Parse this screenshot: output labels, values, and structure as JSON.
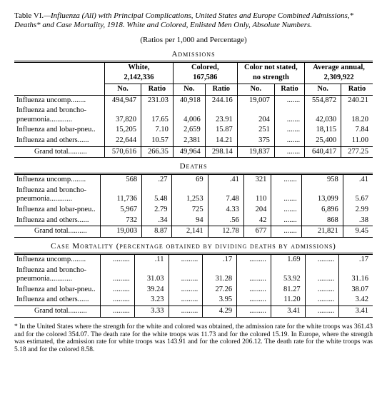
{
  "title": {
    "table_no": "Table VI.",
    "main": "—Influenza (All) with Principal Complications, United States and Europe Combined Admissions,* Deaths* and Case Mortality, 1918.   White and Colored, Enlisted Men Only, Absolute Numbers.",
    "ratios": "(Ratios per 1,000 and Percentage)"
  },
  "sections": {
    "admissions": "Admissions",
    "deaths": "Deaths",
    "case_mortality": "Case Mortality (percentage obtained by dividing deaths by admissions)"
  },
  "column_groups": [
    {
      "label_top": "White,",
      "label_bot": "2,142,336"
    },
    {
      "label_top": "Colored,",
      "label_bot": "167,586"
    },
    {
      "label_top": "Color not stated,",
      "label_bot": "no strength"
    },
    {
      "label_top": "Average annual,",
      "label_bot": "2,309,922"
    }
  ],
  "sub_cols": [
    "No.",
    "Ratio",
    "No.",
    "Ratio",
    "No.",
    "Ratio",
    "No.",
    "Ratio"
  ],
  "row_labels": [
    "Influenza uncomp........",
    "Influenza and broncho-pneumonia............",
    "Influenza and lobar-pneu..",
    "Influenza and others......",
    "Grand total.........."
  ],
  "admissions": {
    "rows": [
      [
        "494,947",
        "231.03",
        "40,918",
        "244.16",
        "19,007",
        ".......",
        "554,872",
        "240.21"
      ],
      [
        "37,820",
        "17.65",
        "4,006",
        "23.91",
        "204",
        ".......",
        "42,030",
        "18.20"
      ],
      [
        "15,205",
        "7.10",
        "2,659",
        "15.87",
        "251",
        ".......",
        "18,115",
        "7.84"
      ],
      [
        "22,644",
        "10.57",
        "2,381",
        "14.21",
        "375",
        ".......",
        "25,400",
        "11.00"
      ],
      [
        "570,616",
        "266.35",
        "49,964",
        "298.14",
        "19,837",
        ".......",
        "640,417",
        "277.25"
      ]
    ]
  },
  "deaths": {
    "rows": [
      [
        "568",
        ".27",
        "69",
        ".41",
        "321",
        ".......",
        "958",
        ".41"
      ],
      [
        "11,736",
        "5.48",
        "1,253",
        "7.48",
        "110",
        ".......",
        "13,099",
        "5.67"
      ],
      [
        "5,967",
        "2.79",
        "725",
        "4.33",
        "204",
        ".......",
        "6,896",
        "2.99"
      ],
      [
        "732",
        ".34",
        "94",
        ".56",
        "42",
        ".......",
        "868",
        ".38"
      ],
      [
        "19,003",
        "8.87",
        "2,141",
        "12.78",
        "677",
        ".......",
        "21,821",
        "9.45"
      ]
    ]
  },
  "case_mortality": {
    "rows": [
      [
        ".........",
        ".11",
        ".........",
        ".17",
        ".........",
        "1.69",
        ".........",
        ".17"
      ],
      [
        ".........",
        "31.03",
        ".........",
        "31.28",
        ".........",
        "53.92",
        ".........",
        "31.16"
      ],
      [
        ".........",
        "39.24",
        ".........",
        "27.26",
        ".........",
        "81.27",
        ".........",
        "38.07"
      ],
      [
        ".........",
        "3.23",
        ".........",
        "3.95",
        ".........",
        "11.20",
        ".........",
        "3.42"
      ],
      [
        ".........",
        "3.33",
        ".........",
        "4.29",
        ".........",
        "3.41",
        ".........",
        "3.41"
      ]
    ]
  },
  "footnote": "* In the United States where the strength for the white and colored was obtained, the admission rate for the white troops was 361.43 and for the colored 354.07.   The death rate for the white troops was 11.73 and for the colored 15.19.   In Europe, where the strength was estimated, the admission rate for white troops was 143.91 and for the colored 206.12.   The death rate for the white troops was 5.18 and for the colored 8.58."
}
